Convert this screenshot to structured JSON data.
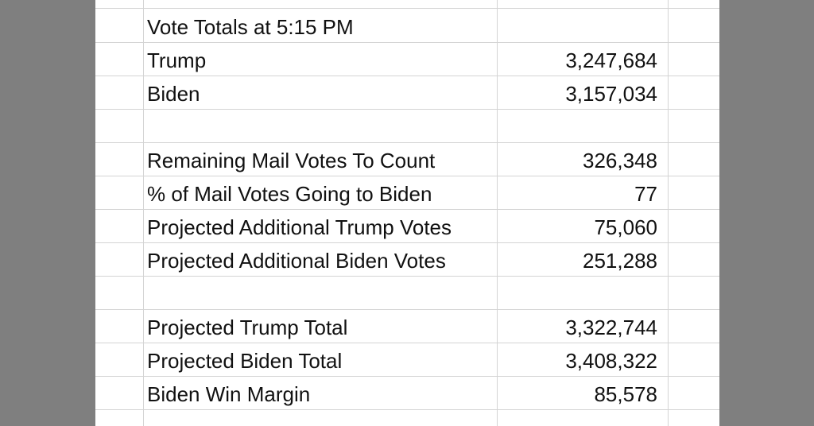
{
  "sheet": {
    "rows": [
      {
        "label": "Vote Totals at 5:15 PM",
        "value": ""
      },
      {
        "label": "Trump",
        "value": "3,247,684"
      },
      {
        "label": "Biden",
        "value": "3,157,034"
      },
      {
        "label": "",
        "value": ""
      },
      {
        "label": "Remaining Mail Votes To Count",
        "value": "326,348"
      },
      {
        "label": "% of Mail Votes Going to Biden",
        "value": "77"
      },
      {
        "label": "Projected Additional Trump Votes",
        "value": "75,060"
      },
      {
        "label": "Projected Additional Biden Votes",
        "value": "251,288"
      },
      {
        "label": "",
        "value": ""
      },
      {
        "label": "Projected Trump Total",
        "value": "3,322,744"
      },
      {
        "label": "Projected Biden Total",
        "value": "3,408,322"
      },
      {
        "label": "Biden Win Margin",
        "value": "85,578"
      }
    ]
  },
  "colors": {
    "background": "#7f7f7f",
    "sheet": "#ffffff",
    "gridline": "#d4d4d4",
    "text": "#111111"
  }
}
